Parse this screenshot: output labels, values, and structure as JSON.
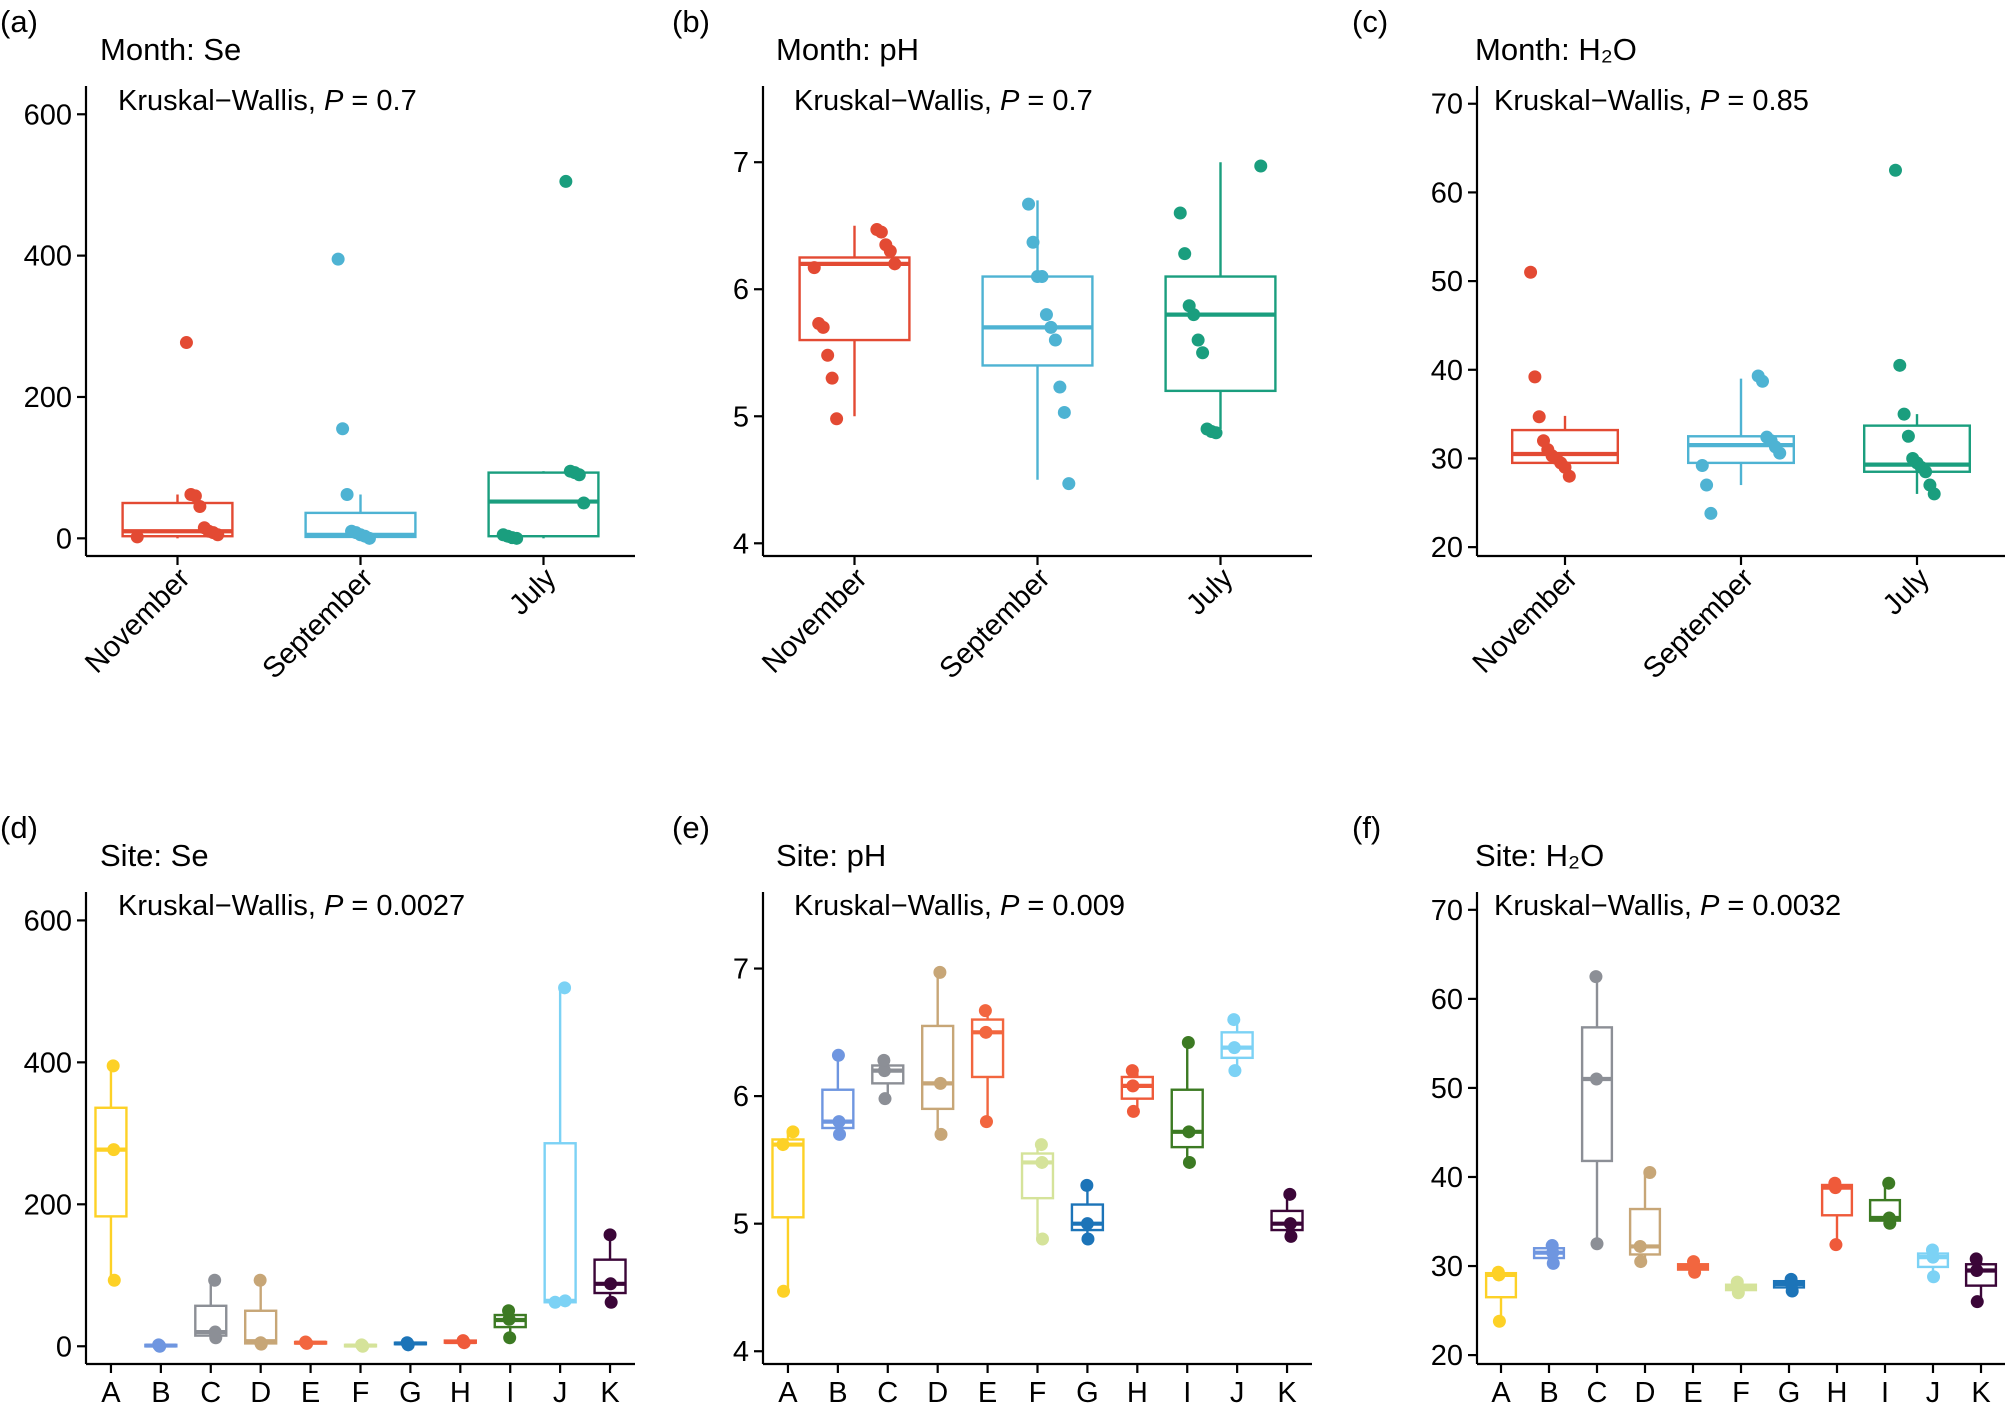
{
  "chart_data": [
    {
      "type": "box",
      "panel_label": "(a)",
      "title": "Month: Se",
      "annotation_prefix": "Kruskal−Wallis, ",
      "annotation_p": "P",
      "annotation_suffix": " = 0.7",
      "ylim": [
        -25,
        640
      ],
      "yticks": [
        0,
        200,
        400,
        600
      ],
      "categories": [
        "November",
        "September",
        "July"
      ],
      "colors": [
        "#e34a33",
        "#4eb3d3",
        "#1a9e7e"
      ],
      "boxes": [
        {
          "min": 0,
          "q1": 3,
          "median": 10,
          "q3": 50,
          "max": 62
        },
        {
          "min": 0,
          "q1": 2,
          "median": 5,
          "q3": 36,
          "max": 62
        },
        {
          "min": 0,
          "q1": 3,
          "median": 52,
          "q3": 93,
          "max": 95
        }
      ],
      "points": [
        [
          2,
          5,
          8,
          10,
          15,
          45,
          60,
          62,
          277
        ],
        [
          0,
          3,
          5,
          8,
          10,
          62,
          155,
          395
        ],
        [
          0,
          1,
          3,
          5,
          50,
          90,
          93,
          95,
          505
        ]
      ]
    },
    {
      "type": "box",
      "panel_label": "(b)",
      "title": "Month: pH",
      "annotation_prefix": "Kruskal−Wallis, ",
      "annotation_p": "P",
      "annotation_suffix": " = 0.7",
      "ylim": [
        3.9,
        7.6
      ],
      "yticks": [
        4,
        5,
        6,
        7
      ],
      "categories": [
        "November",
        "September",
        "July"
      ],
      "colors": [
        "#e34a33",
        "#4eb3d3",
        "#1a9e7e"
      ],
      "boxes": [
        {
          "min": 5.0,
          "q1": 5.6,
          "median": 6.2,
          "q3": 6.25,
          "max": 6.5
        },
        {
          "min": 4.5,
          "q1": 5.4,
          "median": 5.7,
          "q3": 6.1,
          "max": 6.7
        },
        {
          "min": 4.9,
          "q1": 5.2,
          "median": 5.8,
          "q3": 6.1,
          "max": 7.0
        }
      ],
      "points": [
        [
          4.98,
          5.3,
          5.48,
          5.7,
          5.73,
          6.17,
          6.2,
          6.3,
          6.35,
          6.45,
          6.47
        ],
        [
          4.47,
          5.03,
          5.23,
          5.6,
          5.7,
          5.8,
          6.1,
          6.1,
          6.37,
          6.67
        ],
        [
          4.87,
          4.88,
          4.9,
          5.5,
          5.6,
          5.8,
          5.87,
          6.28,
          6.6,
          6.97
        ]
      ]
    },
    {
      "type": "box",
      "panel_label": "(c)",
      "title": "Month: H₂O",
      "annotation_prefix": "Kruskal−Wallis, ",
      "annotation_p": "P",
      "annotation_suffix": " = 0.85",
      "ylim": [
        19,
        72
      ],
      "yticks": [
        20,
        30,
        40,
        50,
        60,
        70
      ],
      "categories": [
        "November",
        "September",
        "July"
      ],
      "colors": [
        "#e34a33",
        "#4eb3d3",
        "#1a9e7e"
      ],
      "boxes": [
        {
          "min": 28,
          "q1": 29.5,
          "median": 30.5,
          "q3": 33.2,
          "max": 34.8
        },
        {
          "min": 27,
          "q1": 29.5,
          "median": 31.5,
          "q3": 32.5,
          "max": 39
        },
        {
          "min": 26,
          "q1": 28.5,
          "median": 29.3,
          "q3": 33.7,
          "max": 35
        }
      ],
      "points": [
        [
          28,
          29,
          29.5,
          30,
          30.3,
          31,
          32,
          34.7,
          39.2,
          51
        ],
        [
          23.8,
          27,
          29.2,
          30.6,
          31.3,
          32,
          32.4,
          38.7,
          39.3
        ],
        [
          26,
          27,
          28.5,
          29,
          29.5,
          30,
          32.5,
          35,
          40.5,
          62.5
        ]
      ]
    },
    {
      "type": "box",
      "panel_label": "(d)",
      "title": "Site: Se",
      "annotation_prefix": "Kruskal−Wallis, ",
      "annotation_p": "P",
      "annotation_suffix": " = 0.0027",
      "ylim": [
        -25,
        640
      ],
      "yticks": [
        0,
        200,
        400,
        600
      ],
      "categories": [
        "A",
        "B",
        "C",
        "D",
        "E",
        "F",
        "G",
        "H",
        "I",
        "J",
        "K"
      ],
      "colors": [
        "#fdd126",
        "#6f96e0",
        "#8c8f96",
        "#c7a677",
        "#f2663f",
        "#d5e39a",
        "#1c74b8",
        "#ef5a3a",
        "#3c7a23",
        "#7cd2f5",
        "#3b0638"
      ],
      "boxes": [
        {
          "min": 93,
          "q1": 183,
          "median": 277,
          "q3": 336,
          "max": 395
        },
        {
          "min": 0,
          "q1": 0,
          "median": 1,
          "q3": 2,
          "max": 3
        },
        {
          "min": 10,
          "q1": 15,
          "median": 20,
          "q3": 57,
          "max": 93
        },
        {
          "min": 2,
          "q1": 4,
          "median": 7,
          "q3": 50,
          "max": 93
        },
        {
          "min": 3,
          "q1": 4,
          "median": 5,
          "q3": 6,
          "max": 7
        },
        {
          "min": 0,
          "q1": 0,
          "median": 1,
          "q3": 2,
          "max": 3
        },
        {
          "min": 2,
          "q1": 3,
          "median": 4,
          "q3": 5,
          "max": 6
        },
        {
          "min": 4,
          "q1": 5,
          "median": 6,
          "q3": 8,
          "max": 10
        },
        {
          "min": 12,
          "q1": 27,
          "median": 37,
          "q3": 44,
          "max": 52
        },
        {
          "min": 62,
          "q1": 62,
          "median": 64,
          "q3": 286,
          "max": 505
        },
        {
          "min": 62,
          "q1": 75,
          "median": 88,
          "q3": 122,
          "max": 157
        }
      ],
      "points": [
        [
          93,
          277,
          395
        ],
        [
          0,
          1,
          2
        ],
        [
          12,
          20,
          93
        ],
        [
          3,
          5,
          93
        ],
        [
          4,
          5,
          6
        ],
        [
          0,
          1,
          2
        ],
        [
          2,
          4,
          5
        ],
        [
          5,
          6,
          8
        ],
        [
          12,
          38,
          50
        ],
        [
          62,
          64,
          505
        ],
        [
          62,
          88,
          157
        ]
      ]
    },
    {
      "type": "box",
      "panel_label": "(e)",
      "title": "Site: pH",
      "annotation_prefix": "Kruskal−Wallis, ",
      "annotation_p": "P",
      "annotation_suffix": " = 0.009",
      "ylim": [
        3.9,
        7.6
      ],
      "yticks": [
        4,
        5,
        6,
        7
      ],
      "categories": [
        "A",
        "B",
        "C",
        "D",
        "E",
        "F",
        "G",
        "H",
        "I",
        "J",
        "K"
      ],
      "colors": [
        "#fdd126",
        "#6f96e0",
        "#8c8f96",
        "#c7a677",
        "#f2663f",
        "#d5e39a",
        "#1c74b8",
        "#ef5a3a",
        "#3c7a23",
        "#7cd2f5",
        "#3b0638"
      ],
      "boxes": [
        {
          "min": 4.47,
          "q1": 5.05,
          "median": 5.62,
          "q3": 5.66,
          "max": 5.72
        },
        {
          "min": 5.7,
          "q1": 5.75,
          "median": 5.8,
          "q3": 6.05,
          "max": 6.32
        },
        {
          "min": 5.98,
          "q1": 6.1,
          "median": 6.2,
          "q3": 6.24,
          "max": 6.28
        },
        {
          "min": 5.7,
          "q1": 5.9,
          "median": 6.1,
          "q3": 6.55,
          "max": 6.97
        },
        {
          "min": 5.8,
          "q1": 6.15,
          "median": 6.5,
          "q3": 6.6,
          "max": 6.67
        },
        {
          "min": 4.88,
          "q1": 5.2,
          "median": 5.48,
          "q3": 5.55,
          "max": 5.62
        },
        {
          "min": 4.88,
          "q1": 4.95,
          "median": 5.0,
          "q3": 5.15,
          "max": 5.3
        },
        {
          "min": 5.88,
          "q1": 5.98,
          "median": 6.08,
          "q3": 6.15,
          "max": 6.2
        },
        {
          "min": 5.48,
          "q1": 5.6,
          "median": 5.72,
          "q3": 6.05,
          "max": 6.42
        },
        {
          "min": 6.2,
          "q1": 6.3,
          "median": 6.38,
          "q3": 6.5,
          "max": 6.6
        },
        {
          "min": 4.9,
          "q1": 4.95,
          "median": 5.0,
          "q3": 5.1,
          "max": 5.23
        }
      ],
      "points": [
        [
          4.47,
          5.62,
          5.72
        ],
        [
          5.7,
          5.8,
          6.32
        ],
        [
          5.98,
          6.2,
          6.28
        ],
        [
          5.7,
          6.1,
          6.97
        ],
        [
          5.8,
          6.5,
          6.67
        ],
        [
          4.88,
          5.48,
          5.62
        ],
        [
          4.88,
          5.0,
          5.3
        ],
        [
          5.88,
          6.08,
          6.2
        ],
        [
          5.48,
          5.72,
          6.42
        ],
        [
          6.2,
          6.38,
          6.6
        ],
        [
          4.9,
          5.0,
          5.23
        ]
      ]
    },
    {
      "type": "box",
      "panel_label": "(f)",
      "title": "Site:  H₂O",
      "annotation_prefix": "Kruskal−Wallis, ",
      "annotation_p": "P",
      "annotation_suffix": " = 0.0032",
      "ylim": [
        19,
        72
      ],
      "yticks": [
        20,
        30,
        40,
        50,
        60,
        70
      ],
      "categories": [
        "A",
        "B",
        "C",
        "D",
        "E",
        "F",
        "G",
        "H",
        "I",
        "J",
        "K"
      ],
      "colors": [
        "#fdd126",
        "#6f96e0",
        "#8c8f96",
        "#c7a677",
        "#f2663f",
        "#d5e39a",
        "#1c74b8",
        "#ef5a3a",
        "#3c7a23",
        "#7cd2f5",
        "#3b0638"
      ],
      "boxes": [
        {
          "min": 23.8,
          "q1": 26.5,
          "median": 29,
          "q3": 29.2,
          "max": 29.3
        },
        {
          "min": 30.3,
          "q1": 30.9,
          "median": 31.5,
          "q3": 32,
          "max": 32.3
        },
        {
          "min": 32.5,
          "q1": 41.8,
          "median": 51,
          "q3": 56.8,
          "max": 62.5
        },
        {
          "min": 30.5,
          "q1": 31.3,
          "median": 32.2,
          "q3": 36.4,
          "max": 40.5
        },
        {
          "min": 29.3,
          "q1": 29.6,
          "median": 29.9,
          "q3": 30.2,
          "max": 30.5
        },
        {
          "min": 27,
          "q1": 27.3,
          "median": 27.6,
          "q3": 27.9,
          "max": 28.2
        },
        {
          "min": 27.2,
          "q1": 27.6,
          "median": 28,
          "q3": 28.3,
          "max": 28.5
        },
        {
          "min": 32.4,
          "q1": 35.7,
          "median": 38.8,
          "q3": 39.1,
          "max": 39.3
        },
        {
          "min": 34.8,
          "q1": 35.1,
          "median": 35.4,
          "q3": 37.4,
          "max": 39.3
        },
        {
          "min": 28.8,
          "q1": 29.9,
          "median": 31,
          "q3": 31.4,
          "max": 31.8
        },
        {
          "min": 26,
          "q1": 27.8,
          "median": 29.5,
          "q3": 30.2,
          "max": 30.8
        }
      ],
      "points": [
        [
          23.8,
          29,
          29.3
        ],
        [
          30.3,
          31.5,
          32.3
        ],
        [
          32.5,
          51,
          62.5
        ],
        [
          30.5,
          32.2,
          40.5
        ],
        [
          29.3,
          29.9,
          30.5
        ],
        [
          27,
          27.6,
          28.2
        ],
        [
          27.2,
          28,
          28.5
        ],
        [
          32.4,
          38.8,
          39.3
        ],
        [
          34.8,
          35.4,
          39.3
        ],
        [
          28.8,
          31,
          31.8
        ],
        [
          26,
          29.5,
          30.8
        ]
      ]
    }
  ]
}
